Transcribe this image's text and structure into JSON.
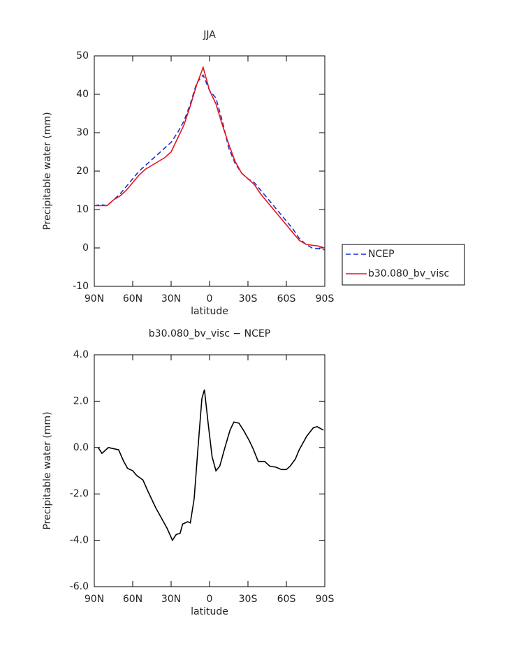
{
  "chart_data": [
    {
      "type": "line",
      "title": "JJA",
      "x_label": "latitude",
      "y_label": "Precipitable water (mm)",
      "x": [
        90,
        85,
        80,
        75,
        70,
        65,
        60,
        55,
        50,
        45,
        40,
        35,
        30,
        25,
        20,
        15,
        10,
        5,
        0,
        -5,
        -10,
        -15,
        -20,
        -25,
        -30,
        -35,
        -40,
        -45,
        -50,
        -55,
        -60,
        -65,
        -70,
        -75,
        -80,
        -85,
        -90
      ],
      "series": [
        {
          "name": "NCEP",
          "color": "#1f2fd0",
          "line_style": "dashed",
          "values": [
            11,
            11.3,
            11,
            12.5,
            14,
            16,
            18,
            20,
            21.5,
            23,
            24.5,
            26,
            27.5,
            30,
            33,
            37.5,
            43,
            45,
            41,
            39,
            33,
            26,
            22,
            19.5,
            18,
            17,
            15,
            13,
            11,
            9,
            7,
            5,
            2.5,
            1,
            0,
            -0.2,
            -0.5
          ]
        },
        {
          "name": "b30.080_bv_visc",
          "color": "#e8141c",
          "line_style": "solid",
          "values": [
            11,
            11,
            11,
            12.5,
            13.5,
            15,
            17,
            19,
            20.5,
            21.5,
            22.5,
            23.5,
            25,
            28.5,
            32,
            37,
            42.5,
            47,
            41,
            37.5,
            32,
            27,
            22.5,
            19.5,
            18,
            16.5,
            14,
            12,
            10,
            8,
            6,
            4,
            2,
            1,
            0.7,
            0.5,
            0
          ]
        }
      ],
      "xlim": [
        90,
        -90
      ],
      "ylim": [
        -10,
        50
      ],
      "xticks": [
        {
          "value": 90,
          "label": "90N"
        },
        {
          "value": 60,
          "label": "60N"
        },
        {
          "value": 30,
          "label": "30N"
        },
        0,
        {
          "value": -30,
          "label": "30S"
        },
        {
          "value": -60,
          "label": "60S"
        },
        {
          "value": -90,
          "label": "90S"
        }
      ],
      "yticks": [
        -10,
        0,
        10,
        20,
        30,
        40,
        50
      ],
      "legend": "right"
    },
    {
      "type": "line",
      "title": "b30.080_bv_visc − NCEP",
      "x_label": "latitude",
      "y_label": "Precipitable water (mm)",
      "x": [
        87,
        84,
        79,
        75,
        71,
        67,
        64,
        60,
        57,
        52,
        48,
        42,
        38,
        33,
        29,
        26,
        23,
        21,
        17,
        15,
        12,
        9,
        6,
        4,
        1,
        -2,
        -5,
        -8,
        -12,
        -16,
        -19,
        -23,
        -27,
        -31,
        -34,
        -38,
        -43,
        -47,
        -52,
        -56,
        -60,
        -63,
        -67,
        -70,
        -73,
        -76,
        -81,
        -84,
        -89
      ],
      "series": [
        {
          "color": "#000000",
          "line_style": "solid",
          "values": [
            0,
            -0.25,
            0,
            -0.05,
            -0.1,
            -0.6,
            -0.9,
            -1.0,
            -1.2,
            -1.4,
            -1.9,
            -2.6,
            -3.0,
            -3.5,
            -4.0,
            -3.75,
            -3.7,
            -3.3,
            -3.2,
            -3.25,
            -2.2,
            0,
            2.1,
            2.5,
            1.0,
            -0.4,
            -1.0,
            -0.8,
            0,
            0.75,
            1.1,
            1.05,
            0.7,
            0.3,
            -0.05,
            -0.6,
            -0.6,
            -0.8,
            -0.85,
            -0.95,
            -0.95,
            -0.8,
            -0.5,
            -0.1,
            0.2,
            0.5,
            0.85,
            0.9,
            0.75
          ]
        }
      ],
      "xlim": [
        90,
        -90
      ],
      "ylim": [
        -6,
        4
      ],
      "xticks": [
        {
          "value": 90,
          "label": "90N"
        },
        {
          "value": 60,
          "label": "60N"
        },
        {
          "value": 30,
          "label": "30N"
        },
        0,
        {
          "value": -30,
          "label": "30S"
        },
        {
          "value": -60,
          "label": "60S"
        },
        {
          "value": -90,
          "label": "90S"
        }
      ],
      "yticks": [
        {
          "value": -6,
          "label": "-6.0"
        },
        {
          "value": -4,
          "label": "-4.0"
        },
        {
          "value": -2,
          "label": "-2.0"
        },
        {
          "value": 0,
          "label": "0.0"
        },
        {
          "value": 2,
          "label": "2.0"
        },
        {
          "value": 4,
          "label": "4.0"
        }
      ]
    }
  ]
}
